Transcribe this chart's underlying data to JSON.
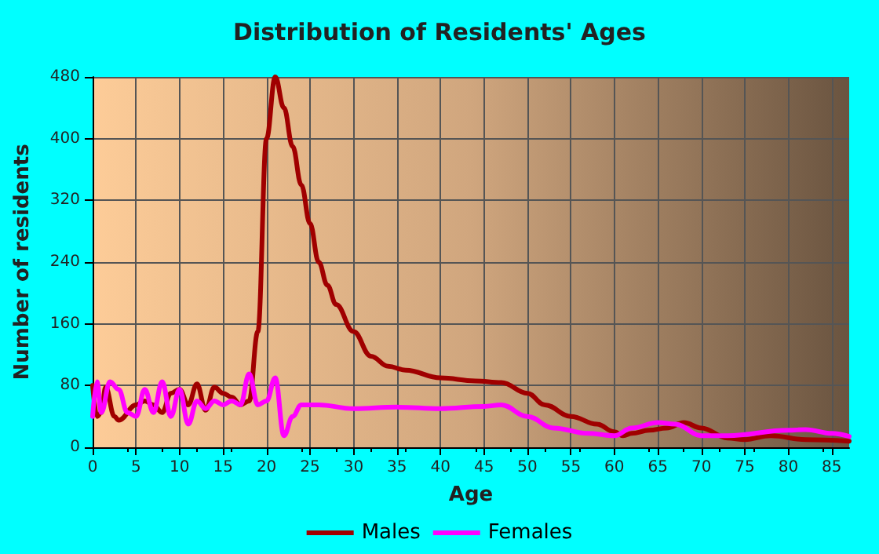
{
  "chart_data": {
    "type": "line",
    "title": "Distribution of Residents' Ages",
    "xlabel": "Age",
    "ylabel": "Number of residents",
    "xlim": [
      0,
      87
    ],
    "xticks": [
      0,
      5,
      10,
      15,
      20,
      25,
      30,
      35,
      40,
      45,
      50,
      55,
      60,
      65,
      70,
      75,
      80,
      85
    ],
    "ylim": [
      0,
      480
    ],
    "yticks": [
      0,
      80,
      160,
      240,
      320,
      400,
      480
    ],
    "grid": true,
    "legend": "bottom",
    "marker": "none",
    "line_style": "solid",
    "series": [
      {
        "name": "Males",
        "color": "#a00000",
        "x": [
          0,
          0.5,
          1,
          1.5,
          2.5,
          3,
          5,
          6,
          7,
          8,
          9,
          10,
          11,
          12,
          13,
          14,
          15,
          16,
          17,
          18,
          19,
          20,
          21,
          22,
          23,
          24,
          25,
          26,
          27,
          28,
          30,
          32,
          34,
          36,
          40,
          44,
          47,
          50,
          52,
          55,
          58,
          60,
          61,
          62,
          64,
          66,
          68,
          70,
          73,
          75,
          78,
          82,
          87
        ],
        "values": [
          80,
          40,
          45,
          78,
          40,
          35,
          55,
          60,
          55,
          45,
          70,
          75,
          55,
          82,
          48,
          78,
          70,
          65,
          55,
          60,
          150,
          400,
          480,
          440,
          390,
          340,
          290,
          240,
          210,
          185,
          150,
          118,
          105,
          100,
          90,
          86,
          84,
          70,
          55,
          40,
          30,
          20,
          15,
          18,
          22,
          25,
          32,
          25,
          12,
          10,
          15,
          10,
          8
        ]
      },
      {
        "name": "Females",
        "color": "#ff00ff",
        "x": [
          0,
          0.5,
          1,
          2,
          3,
          4,
          5,
          6,
          7,
          8,
          9,
          10,
          11,
          12,
          13,
          14,
          15,
          16,
          17,
          18,
          19,
          20,
          21,
          22,
          23,
          24,
          26,
          30,
          35,
          40,
          45,
          47,
          50,
          53,
          57,
          60,
          62,
          65,
          67,
          70,
          73,
          80,
          82,
          85,
          87
        ],
        "values": [
          40,
          85,
          45,
          85,
          75,
          45,
          40,
          75,
          45,
          85,
          40,
          75,
          30,
          60,
          50,
          60,
          55,
          60,
          55,
          95,
          55,
          60,
          90,
          15,
          40,
          55,
          55,
          50,
          52,
          50,
          53,
          55,
          40,
          25,
          18,
          15,
          25,
          32,
          30,
          15,
          15,
          22,
          23,
          18,
          14
        ]
      }
    ]
  }
}
